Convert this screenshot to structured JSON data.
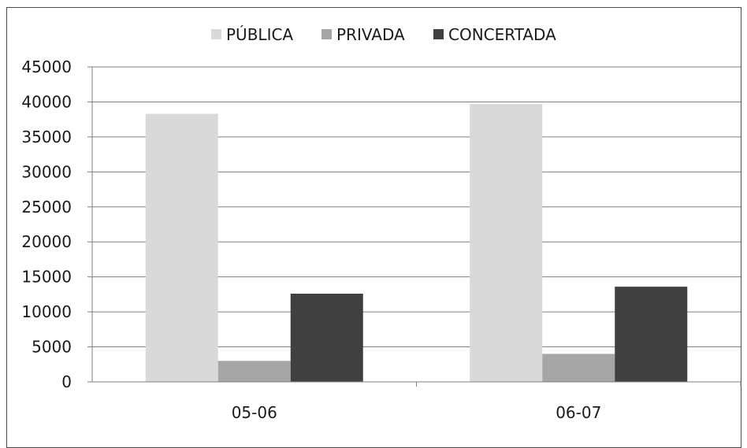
{
  "chart_data": {
    "type": "bar",
    "title": "",
    "xlabel": "",
    "ylabel": "",
    "categories": [
      "05-06",
      "06-07"
    ],
    "series": [
      {
        "name": "PÚBLICA",
        "color": "#d9d9d9",
        "values": [
          38300,
          39700
        ]
      },
      {
        "name": "PRIVADA",
        "color": "#a6a6a6",
        "values": [
          3000,
          4000
        ]
      },
      {
        "name": "CONCERTADA",
        "color": "#404040",
        "values": [
          12600,
          13600
        ]
      }
    ],
    "ylim": [
      0,
      45000
    ],
    "yticks": [
      0,
      5000,
      10000,
      15000,
      20000,
      25000,
      30000,
      35000,
      40000,
      45000
    ],
    "grid": true,
    "legend_position": "top-center"
  }
}
